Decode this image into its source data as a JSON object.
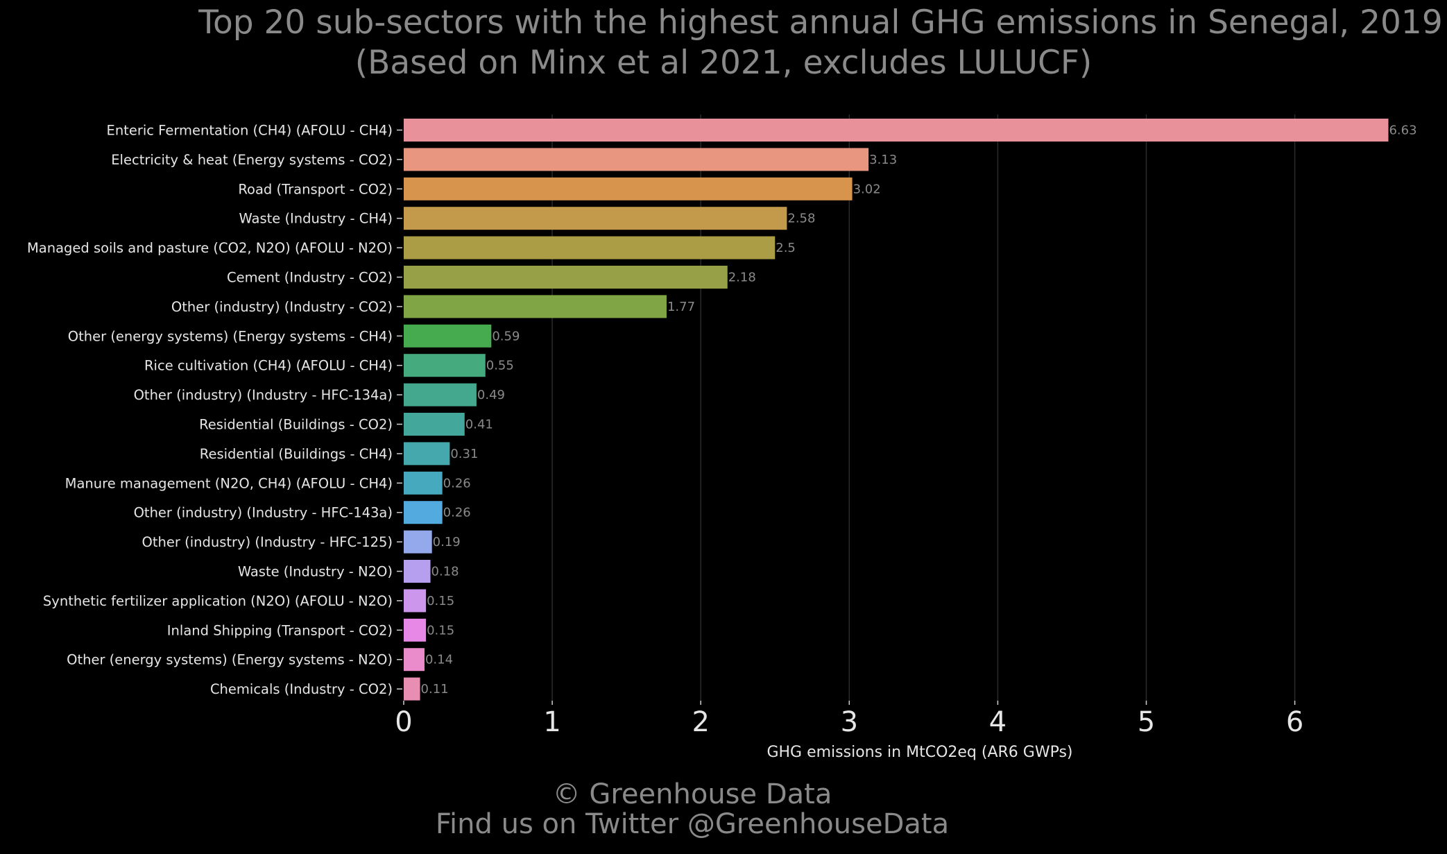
{
  "title": {
    "line1": "Top 20 sub-sectors with the highest annual GHG emissions in Senegal, 2019",
    "line2": "(Based on Minx et al 2021, excludes LULUCF)"
  },
  "footer": {
    "line1": "© Greenhouse Data",
    "line2": "Find us on Twitter @GreenhouseData"
  },
  "chart_data": {
    "type": "bar",
    "orientation": "horizontal",
    "xlabel": "GHG emissions in MtCO2eq (AR6 GWPs)",
    "ylabel": "",
    "xlim": [
      0,
      6.8
    ],
    "xticks": [
      0,
      1,
      2,
      3,
      4,
      5,
      6
    ],
    "grid": "vertical",
    "categories": [
      "Enteric Fermentation (CH4) (AFOLU - CH4)",
      "Electricity & heat (Energy systems - CO2)",
      "Road (Transport - CO2)",
      "Waste (Industry - CH4)",
      "Managed soils and pasture (CO2, N2O) (AFOLU - N2O)",
      "Cement (Industry - CO2)",
      "Other (industry) (Industry - CO2)",
      "Other (energy systems) (Energy systems - CH4)",
      "Rice cultivation (CH4) (AFOLU - CH4)",
      "Other (industry) (Industry - HFC-134a)",
      "Residential (Buildings - CO2)",
      "Residential (Buildings - CH4)",
      "Manure management (N2O, CH4) (AFOLU - CH4)",
      "Other (industry) (Industry - HFC-143a)",
      "Other (industry) (Industry - HFC-125)",
      "Waste (Industry - N2O)",
      "Synthetic fertilizer application (N2O) (AFOLU - N2O)",
      "Inland Shipping (Transport - CO2)",
      "Other (energy systems) (Energy systems - N2O)",
      "Chemicals (Industry - CO2)"
    ],
    "values": [
      6.63,
      3.13,
      3.02,
      2.58,
      2.5,
      2.18,
      1.77,
      0.59,
      0.55,
      0.49,
      0.41,
      0.31,
      0.26,
      0.26,
      0.19,
      0.18,
      0.15,
      0.15,
      0.14,
      0.11
    ],
    "value_labels": [
      "6.63",
      "3.13",
      "3.02",
      "2.58",
      "2.5",
      "2.18",
      "1.77",
      "0.59",
      "0.55",
      "0.49",
      "0.41",
      "0.31",
      "0.26",
      "0.26",
      "0.19",
      "0.18",
      "0.15",
      "0.15",
      "0.14",
      "0.11"
    ],
    "colors": [
      "#e8919b",
      "#e8967f",
      "#d6944c",
      "#c39a4c",
      "#ab9d46",
      "#98a047",
      "#7fa544",
      "#46aa4e",
      "#45ab7f",
      "#44a88e",
      "#43a79c",
      "#45a8ac",
      "#47a9bd",
      "#52aadf",
      "#94a9ec",
      "#b79ff0",
      "#cc96ec",
      "#e787e6",
      "#ea8bcb",
      "#e88eb3"
    ]
  }
}
